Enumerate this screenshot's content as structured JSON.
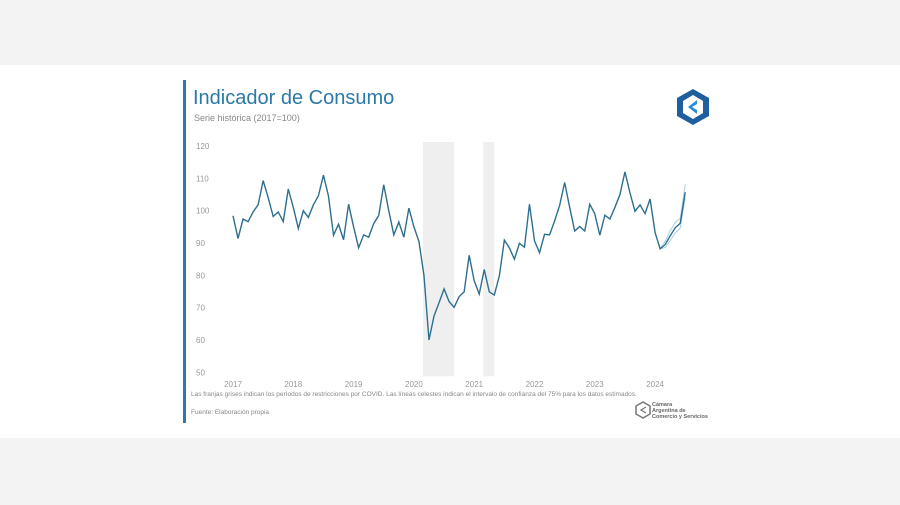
{
  "header": {
    "title": "Indicador de Consumo",
    "subtitle": "Serie histórica (2017=100)"
  },
  "footer": {
    "note": "Las franjas grises indican los períodos de restricciones por COVID. Las líneas celestes indican el intervalo de confianza del 75% para los datos estimados.",
    "source": "Fuente: Elaboración propia",
    "brand_lines": [
      "Cámara",
      "Argentina de",
      "Comercio y Servicios"
    ]
  },
  "colors": {
    "accent": "#2a79a8",
    "line": "#2d6f8e",
    "band": "#a9cfe0",
    "shade": "#efefef"
  },
  "chart_data": {
    "type": "line",
    "title": "Indicador de Consumo",
    "subtitle": "Serie histórica (2017=100)",
    "x_start": "2017-01",
    "frequency": "monthly",
    "ylim": [
      50,
      120
    ],
    "yticks": [
      "120",
      "110",
      "100",
      "90",
      "80",
      "70",
      "60",
      "50"
    ],
    "xticks": [
      "2017",
      "2018",
      "2019",
      "2020",
      "2021",
      "2022",
      "2023",
      "2024"
    ],
    "grid": false,
    "values": [
      98.4,
      91.4,
      97.4,
      96.6,
      99.6,
      101.8,
      109.3,
      104,
      98.2,
      99.6,
      96.6,
      106.7,
      101,
      94.5,
      100,
      97.9,
      101.8,
      104.6,
      111,
      104.5,
      92.4,
      95.8,
      91,
      102,
      95,
      88.5,
      92.5,
      91.8,
      96,
      98.5,
      108,
      100,
      92.5,
      96.5,
      91.8,
      100.8,
      95,
      90.5,
      80,
      60,
      67.4,
      71.5,
      75.8,
      71.9,
      70.1,
      73.4,
      74.9,
      86.2,
      78.3,
      74.2,
      81.8,
      74.9,
      73.9,
      79.8,
      90.9,
      88.5,
      85,
      89.9,
      88.7,
      102,
      90.7,
      87,
      92.7,
      92.5,
      96.8,
      101.6,
      108.7,
      101,
      93.7,
      95.1,
      93.7,
      102,
      99,
      92.4,
      98.6,
      97.4,
      101,
      105,
      112,
      105.5,
      99.8,
      101.8,
      99.1,
      103.6,
      93.2,
      88.2,
      89.5,
      92.2,
      94.7,
      96.1,
      105.7
    ],
    "confidence_band": {
      "start": "2024-03",
      "upper": [
        90.5,
        93.8,
        96.3,
        97.6,
        108.2
      ],
      "lower": [
        88.6,
        90.7,
        93.1,
        94.6,
        104
      ]
    },
    "covid_periods": [
      [
        "2020-03",
        "2020-09"
      ],
      [
        "2021-03",
        "2021-05"
      ]
    ]
  }
}
